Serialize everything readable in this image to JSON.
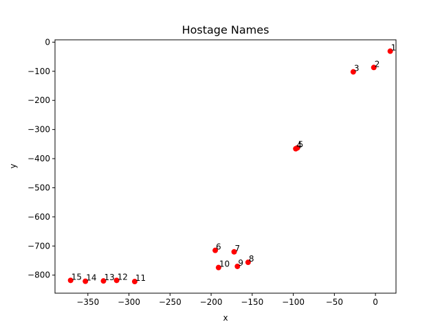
{
  "chart_data": {
    "type": "scatter",
    "title": "Hostage Names",
    "xlabel": "x",
    "ylabel": "y",
    "xlim": [
      -390,
      25
    ],
    "ylim": [
      -862,
      8
    ],
    "xticks": [
      -350,
      -300,
      -250,
      -200,
      -150,
      -100,
      -50,
      0
    ],
    "yticks": [
      0,
      -100,
      -200,
      -300,
      -400,
      -500,
      -600,
      -700,
      -800
    ],
    "xtick_labels": [
      "−350",
      "−300",
      "−250",
      "−200",
      "−150",
      "−100",
      "−50",
      "0"
    ],
    "ytick_labels": [
      "0",
      "−100",
      "−200",
      "−300",
      "−400",
      "−500",
      "−600",
      "−700",
      "−800"
    ],
    "grid": false,
    "marker_color": "#ff0000",
    "points": [
      {
        "label": "1",
        "x": 18,
        "y": -31
      },
      {
        "label": "2",
        "x": -2,
        "y": -87
      },
      {
        "label": "3",
        "x": -27,
        "y": -102
      },
      {
        "label": "4",
        "x": -97,
        "y": -366
      },
      {
        "label": "5",
        "x": -95,
        "y": -363
      },
      {
        "label": "6",
        "x": -195,
        "y": -715
      },
      {
        "label": "7",
        "x": -172,
        "y": -720
      },
      {
        "label": "8",
        "x": -155,
        "y": -756
      },
      {
        "label": "9",
        "x": -168,
        "y": -770
      },
      {
        "label": "10",
        "x": -191,
        "y": -774
      },
      {
        "label": "11",
        "x": -293,
        "y": -822
      },
      {
        "label": "12",
        "x": -315,
        "y": -818
      },
      {
        "label": "13",
        "x": -331,
        "y": -820
      },
      {
        "label": "14",
        "x": -353,
        "y": -821
      },
      {
        "label": "15",
        "x": -371,
        "y": -818
      }
    ]
  }
}
